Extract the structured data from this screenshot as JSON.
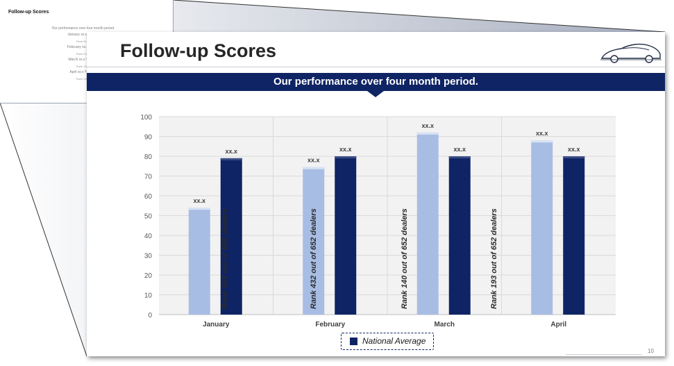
{
  "thumbnail": {
    "title": "Follow-up Scores",
    "lines": [
      {
        "text": "Our performance over four month period.",
        "small": false
      },
      {
        "text": "January xx.x% Natio",
        "small": false
      },
      {
        "text": "Rank 610 o",
        "small": true
      },
      {
        "text": "February xx.x % Nati",
        "small": false
      },
      {
        "text": "Rank 432 o",
        "small": true
      },
      {
        "text": "March xx.x % Natio",
        "small": false
      },
      {
        "text": "Rank 140 o",
        "small": true
      },
      {
        "text": "April xx.x % Natio",
        "small": false
      },
      {
        "text": "Rank 193 o",
        "small": true
      }
    ]
  },
  "slide": {
    "title": "Follow-up Scores",
    "subtitle": "Our performance over four month period.",
    "page_number": "10",
    "legend_label": "National Average"
  },
  "colors": {
    "navy": "#0f2464",
    "light_bar": "#a8bde4",
    "grid": "#d9d9d9",
    "plot_bg": "#f2f2f2"
  },
  "icons": [
    "car-logo-icon"
  ],
  "chart_data": {
    "type": "bar",
    "categories": [
      "January",
      "February",
      "March",
      "April"
    ],
    "series": [
      {
        "values": [
          54,
          74.5,
          92,
          88
        ],
        "labels": [
          "xx.x",
          "xx.x",
          "xx.x",
          "xx.x"
        ],
        "color": "#a8bde4"
      },
      {
        "name": "National Average",
        "values": [
          79,
          80,
          80,
          80
        ],
        "labels": [
          "xx.x",
          "xx.x",
          "xx.x",
          "xx.x"
        ],
        "color": "#0f2464"
      }
    ],
    "annotations": [
      "Rank 610 out of 652 dealers",
      "Rank 432 out of 652 dealers",
      "Rank 140 out of 652 dealers",
      "Rank 193 out of 652 dealers"
    ],
    "ylim": [
      0,
      100
    ],
    "yticks": [
      0,
      10,
      20,
      30,
      40,
      50,
      60,
      70,
      80,
      90,
      100
    ],
    "grid": true,
    "legend": "bottom-center"
  }
}
